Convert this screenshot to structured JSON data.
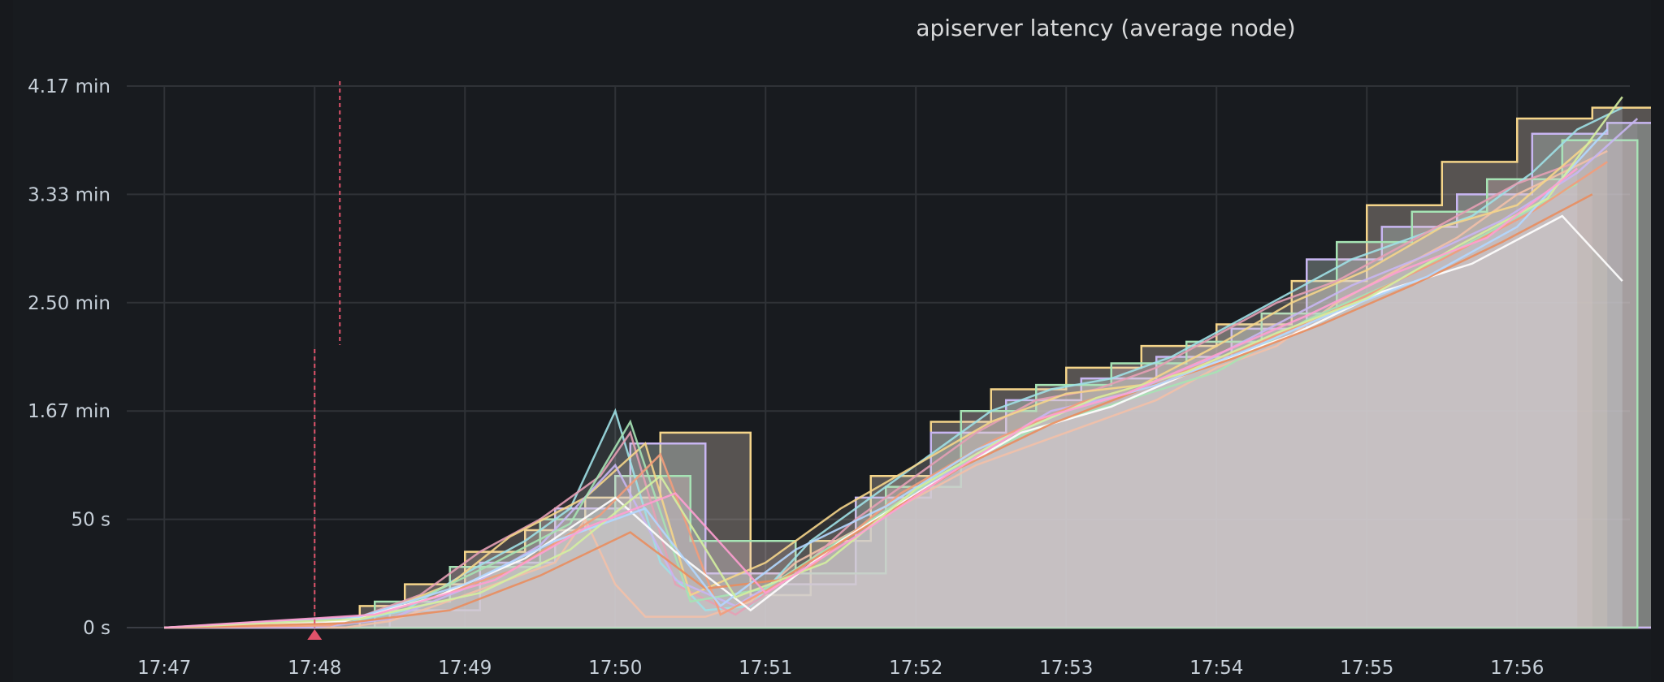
{
  "chart_data": {
    "type": "area",
    "title": "apiserver latency (average node)",
    "xlabel": "",
    "ylabel": "",
    "x_ticks": [
      "17:47",
      "17:48",
      "17:49",
      "17:50",
      "17:51",
      "17:52",
      "17:53",
      "17:54",
      "17:55",
      "17:56"
    ],
    "y_ticks": [
      "0 s",
      "50 s",
      "1.67 min",
      "2.50 min",
      "3.33 min",
      "4.17 min"
    ],
    "y_tick_values_seconds": [
      0,
      50,
      100,
      150,
      200,
      250
    ],
    "ylim_seconds": [
      0,
      250
    ],
    "xlim_minutes": [
      "17:46:45",
      "17:56:45"
    ],
    "grid": true,
    "legend": "none",
    "annotation_marker_time": "17:48",
    "x_unit": "minutes after 17:47",
    "series_count_note": "many overlapping per-node series",
    "series": [
      {
        "x": [
          0,
          0.5,
          0.9,
          1.2,
          1.5,
          1.8,
          2.2,
          2.6,
          2.8,
          3.0,
          3.2,
          3.6,
          3.9,
          4.2,
          4.6,
          5.0,
          5.4,
          5.8,
          6.2,
          6.6,
          7.0,
          7.4,
          7.8,
          8.2,
          8.6,
          9.0,
          9.3,
          9.6
        ],
        "y": [
          0,
          0,
          0,
          0,
          3,
          10,
          20,
          30,
          50,
          20,
          5,
          5,
          12,
          30,
          45,
          60,
          75,
          85,
          95,
          105,
          120,
          130,
          150,
          165,
          180,
          200,
          210,
          220
        ]
      },
      {
        "x": [
          0,
          0.9,
          1.2,
          1.6,
          2.0,
          2.4,
          2.7,
          3.0,
          3.3,
          3.6,
          3.9,
          4.3,
          4.7,
          5.1,
          5.5,
          5.9,
          6.3,
          6.7,
          7.1,
          7.5,
          7.9,
          8.3,
          8.7,
          9.1,
          9.4,
          9.7
        ],
        "y": [
          0,
          0,
          2,
          8,
          25,
          40,
          55,
          100,
          30,
          8,
          10,
          40,
          60,
          80,
          100,
          110,
          115,
          125,
          140,
          155,
          170,
          180,
          190,
          210,
          230,
          240
        ]
      },
      {
        "x": [
          0,
          0.9,
          1.3,
          1.7,
          2.1,
          2.5,
          2.9,
          3.1,
          3.4,
          3.8,
          4.2,
          4.6,
          5.0,
          5.4,
          5.8,
          6.2,
          6.6,
          7.0,
          7.4,
          7.8,
          8.2,
          8.6,
          9.0,
          9.4
        ],
        "y": [
          0,
          0,
          5,
          15,
          35,
          50,
          70,
          90,
          20,
          6,
          25,
          50,
          70,
          90,
          105,
          110,
          120,
          135,
          150,
          160,
          175,
          190,
          205,
          215
        ]
      },
      {
        "x": [
          0,
          1.0,
          1.4,
          1.9,
          2.3,
          2.8,
          3.2,
          3.5,
          4.0,
          4.5,
          5.0,
          5.5,
          6.0,
          6.5,
          7.0,
          7.5,
          8.0,
          8.5,
          9.0,
          9.5
        ],
        "y": [
          0,
          1,
          6,
          20,
          42,
          60,
          85,
          15,
          30,
          55,
          75,
          95,
          108,
          112,
          130,
          150,
          165,
          185,
          195,
          225
        ]
      },
      {
        "x": [
          0,
          1.0,
          1.5,
          2.0,
          2.5,
          3.0,
          3.4,
          3.8,
          4.4,
          4.9,
          5.4,
          5.9,
          6.4,
          6.9,
          7.4,
          7.9,
          8.4,
          8.9,
          9.4,
          9.8
        ],
        "y": [
          0,
          0,
          4,
          18,
          38,
          75,
          22,
          10,
          35,
          58,
          80,
          100,
          108,
          122,
          140,
          158,
          172,
          188,
          210,
          235
        ]
      },
      {
        "x": [
          0,
          1.1,
          1.6,
          2.2,
          2.7,
          3.1,
          3.5,
          4.0,
          4.6,
          5.2,
          5.8,
          6.4,
          7.0,
          7.6,
          8.2,
          8.8,
          9.4
        ],
        "y": [
          0,
          2,
          10,
          30,
          48,
          95,
          12,
          18,
          45,
          72,
          92,
          105,
          118,
          142,
          160,
          182,
          205
        ]
      },
      {
        "x": [
          0,
          1.1,
          1.7,
          2.3,
          2.9,
          3.3,
          3.7,
          4.3,
          4.9,
          5.5,
          6.1,
          6.7,
          7.3,
          7.9,
          8.5,
          9.1,
          9.6
        ],
        "y": [
          0,
          1,
          12,
          26,
          52,
          80,
          6,
          28,
          62,
          86,
          104,
          116,
          132,
          150,
          170,
          192,
          215
        ]
      },
      {
        "x": [
          0,
          1.2,
          1.8,
          2.4,
          3.0,
          3.4,
          3.9,
          4.5,
          5.1,
          5.7,
          6.3,
          6.9,
          7.5,
          8.1,
          8.7,
          9.3,
          9.7
        ],
        "y": [
          0,
          3,
          14,
          32,
          60,
          35,
          8,
          40,
          66,
          90,
          102,
          120,
          135,
          155,
          168,
          190,
          160
        ]
      },
      {
        "x": [
          0,
          1.2,
          1.9,
          2.5,
          3.1,
          3.6,
          4.1,
          4.7,
          5.3,
          5.9,
          6.5,
          7.1,
          7.7,
          8.3,
          8.9,
          9.5
        ],
        "y": [
          0,
          2,
          8,
          24,
          44,
          18,
          22,
          48,
          74,
          94,
          110,
          124,
          140,
          158,
          178,
          200
        ]
      },
      {
        "x": [
          0,
          1.3,
          2.0,
          2.6,
          3.2,
          3.7,
          4.2,
          4.8,
          5.4,
          6.0,
          6.6,
          7.2,
          7.8,
          8.4,
          9.0,
          9.6
        ],
        "y": [
          0,
          5,
          20,
          40,
          55,
          10,
          36,
          56,
          82,
          100,
          112,
          128,
          146,
          162,
          185,
          230
        ]
      },
      {
        "x": [
          0,
          1.3,
          2.1,
          2.7,
          3.3,
          3.8,
          4.4,
          5.0,
          5.6,
          6.2,
          6.8,
          7.4,
          8.0,
          8.6,
          9.2,
          9.7
        ],
        "y": [
          0,
          4,
          16,
          36,
          70,
          14,
          30,
          64,
          88,
          106,
          118,
          136,
          152,
          176,
          198,
          245
        ]
      },
      {
        "x": [
          0,
          1.4,
          2.2,
          2.8,
          3.4,
          4.0,
          4.6,
          5.2,
          5.8,
          6.4,
          7.0,
          7.6,
          8.2,
          8.8,
          9.4
        ],
        "y": [
          0,
          6,
          22,
          46,
          62,
          16,
          42,
          70,
          96,
          108,
          126,
          144,
          164,
          180,
          212
        ]
      }
    ],
    "step_series": [
      {
        "x": [
          0,
          1.3,
          1.6,
          2.0,
          2.4,
          2.8,
          3.3,
          3.9,
          4.3,
          4.7,
          5.1,
          5.5,
          6.0,
          6.5,
          7.0,
          7.5,
          8.0,
          8.5,
          9.0,
          9.5,
          9.9
        ],
        "y": [
          0,
          10,
          20,
          35,
          45,
          60,
          90,
          15,
          40,
          70,
          95,
          110,
          120,
          130,
          140,
          160,
          195,
          215,
          235,
          240,
          240
        ]
      },
      {
        "x": [
          0,
          1.5,
          2.1,
          2.6,
          3.1,
          3.6,
          4.1,
          4.6,
          5.1,
          5.6,
          6.1,
          6.6,
          7.1,
          7.6,
          8.1,
          8.6,
          9.1,
          9.6,
          9.9
        ],
        "y": [
          0,
          8,
          30,
          55,
          85,
          25,
          20,
          60,
          90,
          105,
          115,
          125,
          138,
          170,
          185,
          200,
          228,
          233,
          233
        ]
      },
      {
        "x": [
          0,
          1.4,
          1.9,
          2.5,
          3.0,
          3.5,
          4.2,
          4.8,
          5.3,
          5.8,
          6.3,
          6.8,
          7.3,
          7.8,
          8.3,
          8.8,
          9.3,
          9.8
        ],
        "y": [
          0,
          12,
          28,
          50,
          70,
          40,
          25,
          65,
          100,
          112,
          122,
          132,
          145,
          178,
          192,
          207,
          225,
          225
        ]
      }
    ]
  }
}
